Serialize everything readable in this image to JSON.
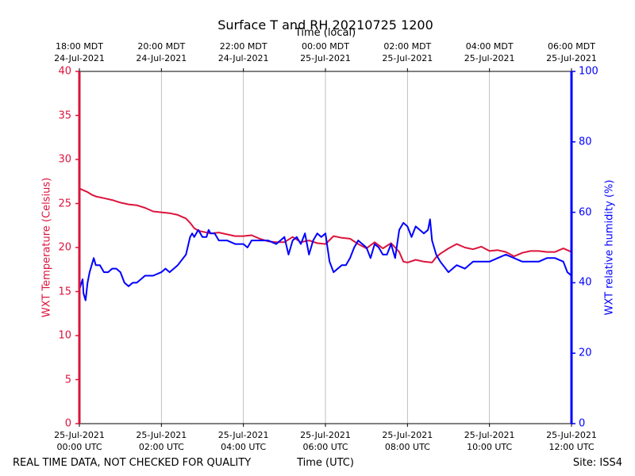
{
  "chart_data": {
    "type": "line",
    "title": "Surface T and RH 20210725 1200",
    "top_axis_label": "Time (local)",
    "xlabel": "Time (UTC)",
    "ylabel_left": "WXT Temperature (Celsius)",
    "ylabel_right": "WXT relative humidity (%)",
    "left_color": "#dc143c",
    "right_color": "#0000ff",
    "xlim_hours": [
      0,
      12
    ],
    "ylim_left": [
      0,
      40
    ],
    "ylim_right": [
      0,
      100
    ],
    "left_ticks": [
      0,
      5,
      10,
      15,
      20,
      25,
      30,
      35,
      40
    ],
    "right_ticks": [
      0,
      20,
      40,
      60,
      80,
      100
    ],
    "grid_x": true,
    "bottom_ticks": [
      {
        "hour": 0,
        "line1": "25-Jul-2021",
        "line2": "00:00 UTC"
      },
      {
        "hour": 2,
        "line1": "25-Jul-2021",
        "line2": "02:00 UTC"
      },
      {
        "hour": 4,
        "line1": "25-Jul-2021",
        "line2": "04:00 UTC"
      },
      {
        "hour": 6,
        "line1": "25-Jul-2021",
        "line2": "06:00 UTC"
      },
      {
        "hour": 8,
        "line1": "25-Jul-2021",
        "line2": "08:00 UTC"
      },
      {
        "hour": 10,
        "line1": "25-Jul-2021",
        "line2": "10:00 UTC"
      },
      {
        "hour": 12,
        "line1": "25-Jul-2021",
        "line2": "12:00 UTC"
      }
    ],
    "top_ticks": [
      {
        "hour": 0,
        "line1": "18:00 MDT",
        "line2": "24-Jul-2021"
      },
      {
        "hour": 2,
        "line1": "20:00 MDT",
        "line2": "24-Jul-2021"
      },
      {
        "hour": 4,
        "line1": "22:00 MDT",
        "line2": "24-Jul-2021"
      },
      {
        "hour": 6,
        "line1": "00:00 MDT",
        "line2": "25-Jul-2021"
      },
      {
        "hour": 8,
        "line1": "02:00 MDT",
        "line2": "25-Jul-2021"
      },
      {
        "hour": 10,
        "line1": "04:00 MDT",
        "line2": "25-Jul-2021"
      },
      {
        "hour": 12,
        "line1": "06:00 MDT",
        "line2": "25-Jul-2021"
      }
    ],
    "series": [
      {
        "name": "WXT Temperature",
        "axis": "left",
        "x": [
          0,
          0.05,
          0.1,
          0.2,
          0.3,
          0.4,
          0.5,
          0.6,
          0.8,
          1.0,
          1.2,
          1.4,
          1.6,
          1.8,
          2.0,
          2.2,
          2.4,
          2.6,
          2.7,
          2.8,
          2.9,
          3.0,
          3.2,
          3.4,
          3.6,
          3.8,
          4.0,
          4.2,
          4.4,
          4.6,
          4.8,
          5.0,
          5.2,
          5.4,
          5.6,
          5.8,
          6.0,
          6.2,
          6.4,
          6.6,
          6.8,
          7.0,
          7.2,
          7.4,
          7.6,
          7.8,
          7.9,
          8.0,
          8.2,
          8.4,
          8.6,
          8.7,
          8.8,
          9.0,
          9.2,
          9.4,
          9.6,
          9.8,
          10.0,
          10.2,
          10.4,
          10.6,
          10.8,
          11.0,
          11.2,
          11.4,
          11.6,
          11.8,
          12.0
        ],
        "values": [
          26.7,
          26.6,
          26.5,
          26.3,
          26.0,
          25.8,
          25.7,
          25.6,
          25.4,
          25.1,
          24.9,
          24.8,
          24.5,
          24.1,
          24.0,
          23.9,
          23.7,
          23.3,
          22.8,
          22.2,
          21.9,
          21.8,
          21.6,
          21.7,
          21.5,
          21.3,
          21.3,
          21.4,
          21.0,
          20.7,
          20.6,
          20.6,
          21.2,
          20.6,
          20.8,
          20.5,
          20.4,
          21.3,
          21.1,
          21.0,
          20.4,
          19.9,
          20.6,
          19.9,
          20.5,
          19.5,
          18.4,
          18.3,
          18.6,
          18.4,
          18.3,
          18.9,
          19.3,
          19.9,
          20.4,
          20.0,
          19.8,
          20.1,
          19.6,
          19.7,
          19.5,
          19.0,
          19.4,
          19.6,
          19.6,
          19.5,
          19.5,
          19.9,
          19.5
        ]
      },
      {
        "name": "WXT relative humidity",
        "axis": "right",
        "x": [
          0,
          0.05,
          0.08,
          0.1,
          0.15,
          0.2,
          0.25,
          0.3,
          0.35,
          0.4,
          0.5,
          0.6,
          0.7,
          0.8,
          0.9,
          1.0,
          1.1,
          1.2,
          1.3,
          1.4,
          1.5,
          1.6,
          1.8,
          2.0,
          2.1,
          2.2,
          2.4,
          2.6,
          2.7,
          2.75,
          2.8,
          2.9,
          3.0,
          3.1,
          3.15,
          3.2,
          3.3,
          3.4,
          3.5,
          3.6,
          3.8,
          4.0,
          4.1,
          4.2,
          4.4,
          4.6,
          4.8,
          5.0,
          5.1,
          5.2,
          5.3,
          5.4,
          5.5,
          5.6,
          5.7,
          5.8,
          5.9,
          6.0,
          6.1,
          6.2,
          6.3,
          6.4,
          6.5,
          6.6,
          6.7,
          6.8,
          6.9,
          7.0,
          7.1,
          7.2,
          7.3,
          7.4,
          7.5,
          7.6,
          7.7,
          7.8,
          7.9,
          8.0,
          8.1,
          8.2,
          8.3,
          8.4,
          8.5,
          8.55,
          8.6,
          8.7,
          8.8,
          9.0,
          9.2,
          9.4,
          9.6,
          9.8,
          10.0,
          10.2,
          10.4,
          10.6,
          10.8,
          11.0,
          11.2,
          11.4,
          11.6,
          11.8,
          11.9,
          12.0
        ],
        "values": [
          38,
          40,
          41,
          37,
          35,
          40,
          43,
          45,
          47,
          45,
          45,
          43,
          43,
          44,
          44,
          43,
          40,
          39,
          40,
          40,
          41,
          42,
          42,
          43,
          44,
          43,
          45,
          48,
          53,
          54,
          53,
          55,
          53,
          53,
          55,
          54,
          54,
          52,
          52,
          52,
          51,
          51,
          50,
          52,
          52,
          52,
          51,
          53,
          48,
          52,
          53,
          51,
          54,
          48,
          52,
          54,
          53,
          54,
          46,
          43,
          44,
          45,
          45,
          47,
          50,
          52,
          51,
          50,
          47,
          51,
          50,
          48,
          48,
          51,
          47,
          55,
          57,
          56,
          53,
          56,
          55,
          54,
          55,
          58,
          52,
          48,
          46,
          43,
          45,
          44,
          46,
          46,
          46,
          47,
          48,
          47,
          46,
          46,
          46,
          47,
          47,
          46,
          43,
          42
        ]
      }
    ]
  },
  "footer": {
    "disclaimer": "REAL TIME DATA, NOT CHECKED FOR QUALITY",
    "site": "Site: ISS4"
  }
}
